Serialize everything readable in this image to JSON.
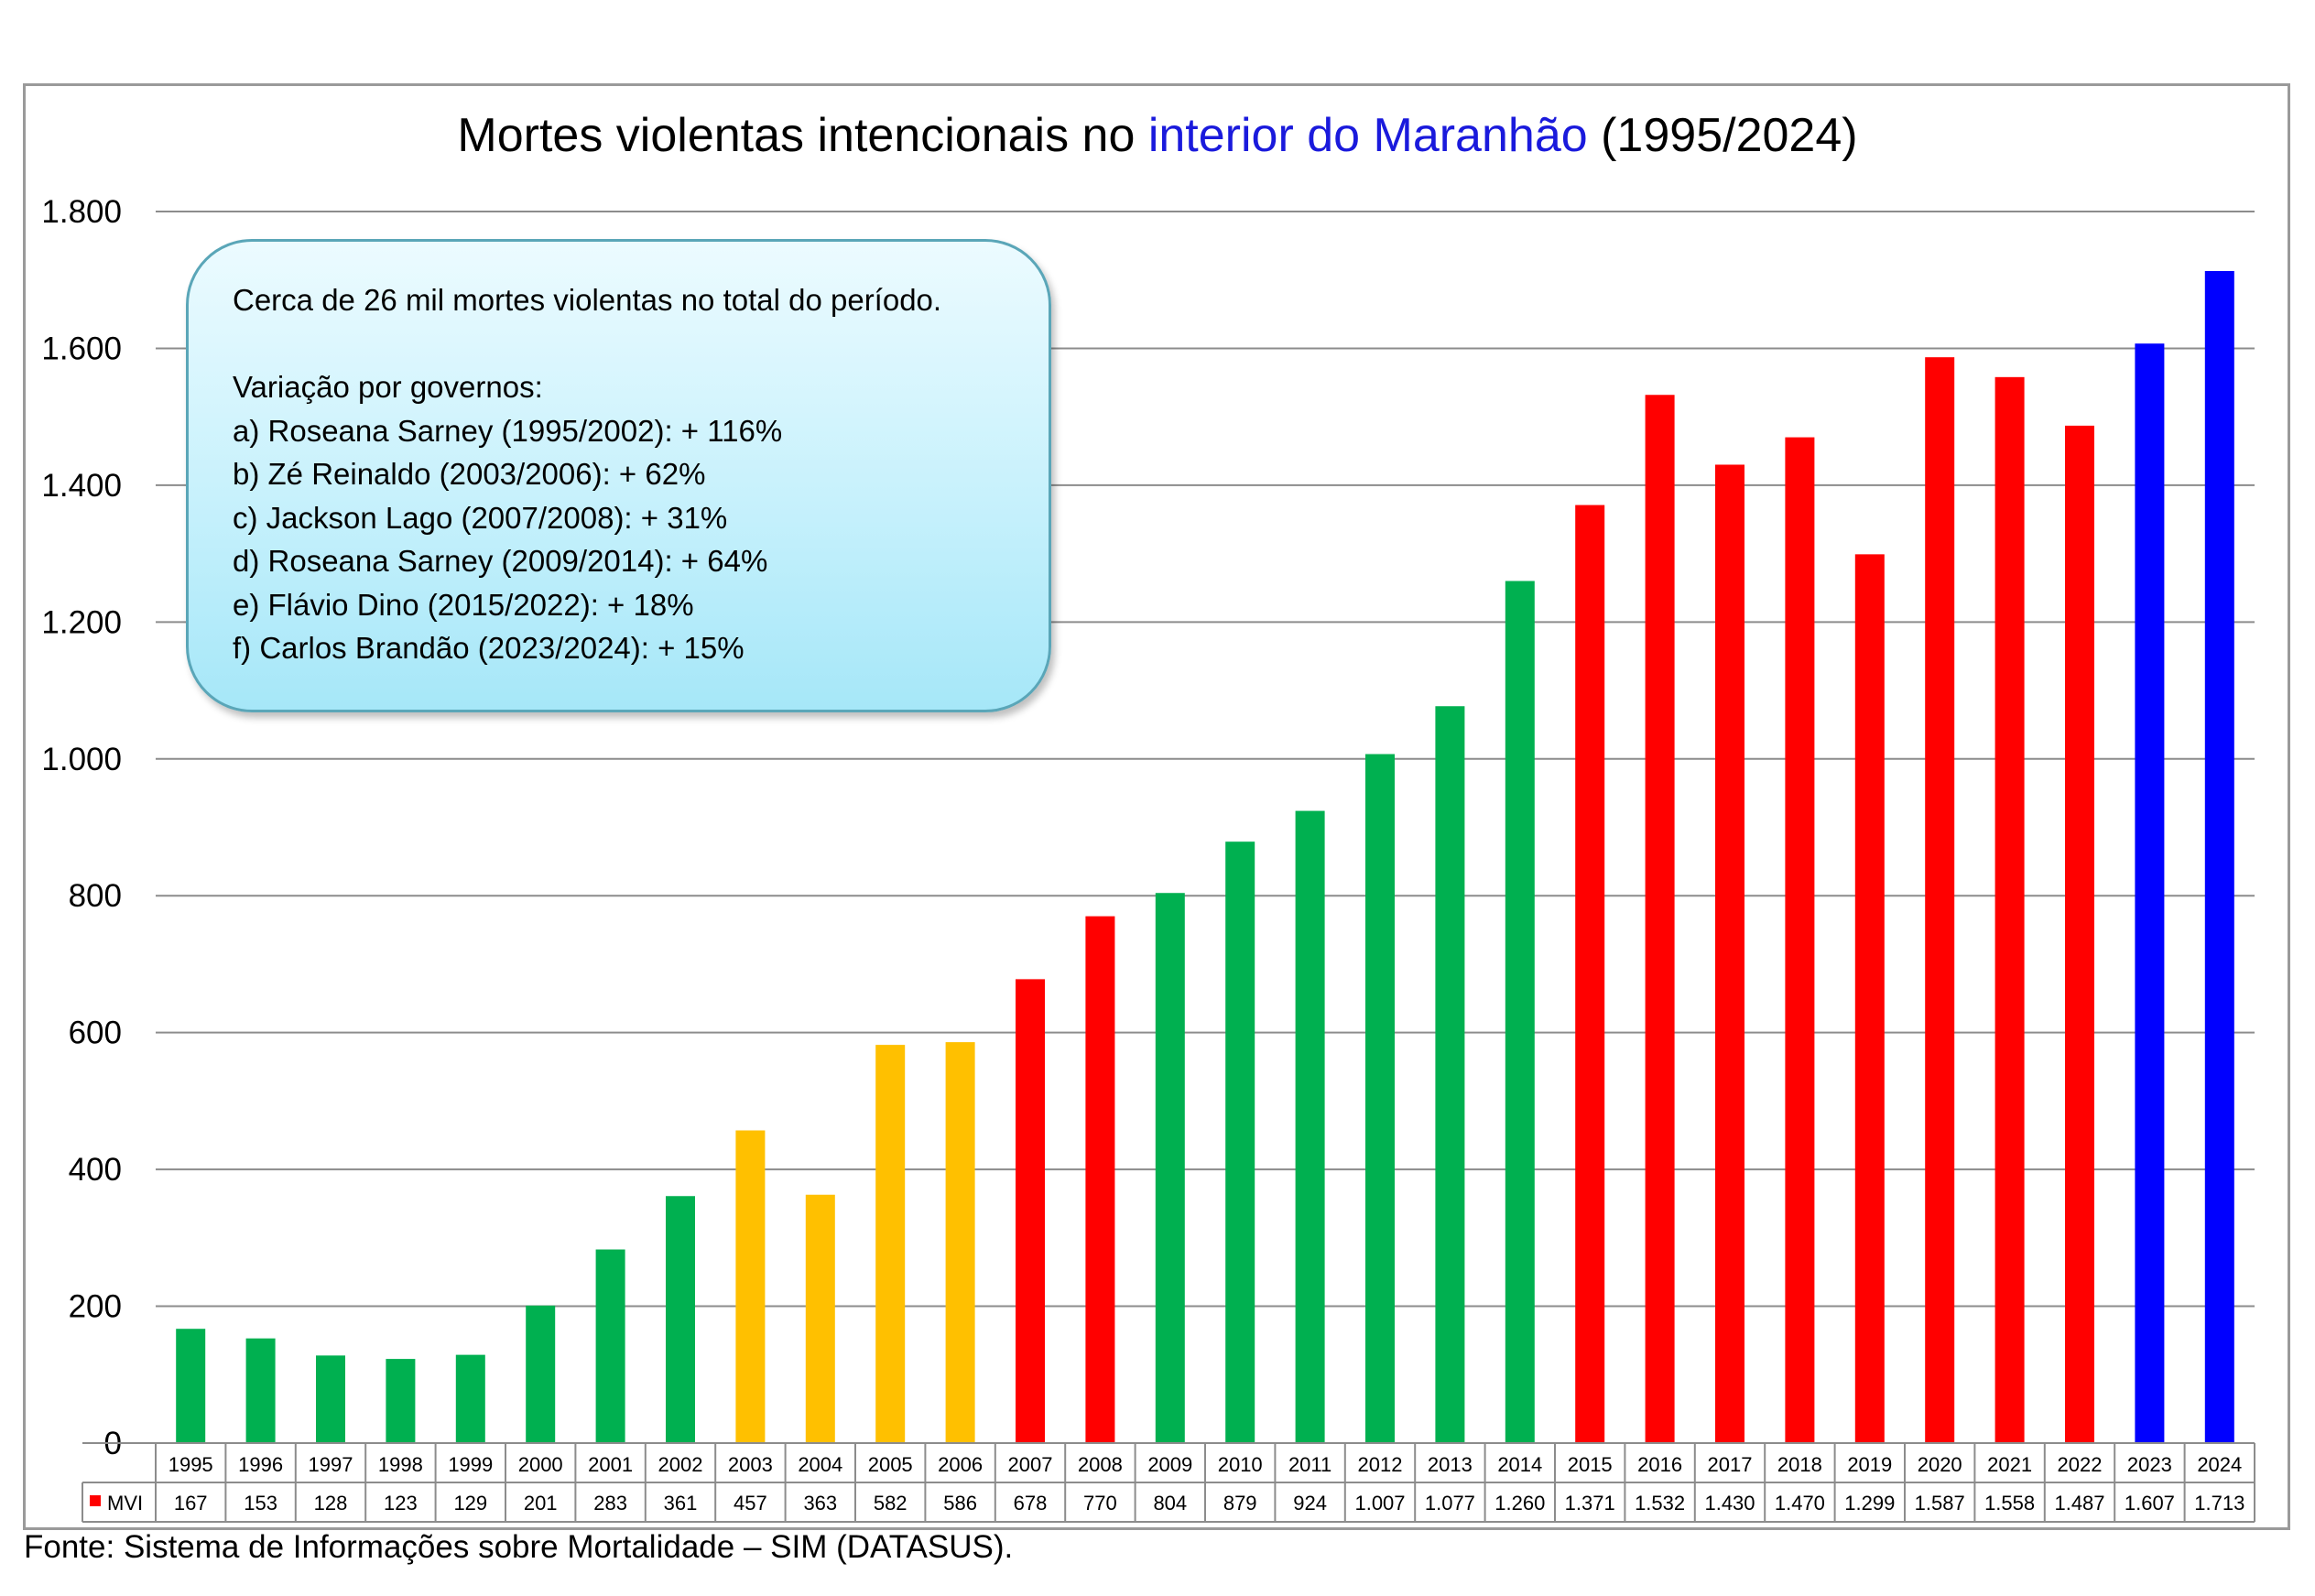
{
  "chart_data": {
    "type": "bar",
    "title_parts": [
      "Mortes violentas intencionais no ",
      "interior do Maranhão",
      " (1995/2024)"
    ],
    "categories": [
      "1995",
      "1996",
      "1997",
      "1998",
      "1999",
      "2000",
      "2001",
      "2002",
      "2003",
      "2004",
      "2005",
      "2006",
      "2007",
      "2008",
      "2009",
      "2010",
      "2011",
      "2012",
      "2013",
      "2014",
      "2015",
      "2016",
      "2017",
      "2018",
      "2019",
      "2020",
      "2021",
      "2022",
      "2023",
      "2024"
    ],
    "values": [
      167,
      153,
      128,
      123,
      129,
      201,
      283,
      361,
      457,
      363,
      582,
      586,
      678,
      770,
      804,
      879,
      924,
      1007,
      1077,
      1260,
      1371,
      1532,
      1430,
      1470,
      1299,
      1587,
      1558,
      1487,
      1607,
      1713
    ],
    "value_labels": [
      "167",
      "153",
      "128",
      "123",
      "129",
      "201",
      "283",
      "361",
      "457",
      "363",
      "582",
      "586",
      "678",
      "770",
      "804",
      "879",
      "924",
      "1.007",
      "1.077",
      "1.260",
      "1.371",
      "1.532",
      "1.430",
      "1.470",
      "1.299",
      "1.587",
      "1.558",
      "1.487",
      "1.607",
      "1.713"
    ],
    "bar_colors": [
      "#00b050",
      "#00b050",
      "#00b050",
      "#00b050",
      "#00b050",
      "#00b050",
      "#00b050",
      "#00b050",
      "#ffc000",
      "#ffc000",
      "#ffc000",
      "#ffc000",
      "#ff0000",
      "#ff0000",
      "#00b050",
      "#00b050",
      "#00b050",
      "#00b050",
      "#00b050",
      "#00b050",
      "#ff0000",
      "#ff0000",
      "#ff0000",
      "#ff0000",
      "#ff0000",
      "#ff0000",
      "#ff0000",
      "#ff0000",
      "#0000ff",
      "#0000ff"
    ],
    "series": [
      {
        "name": "MVI",
        "legend_color": "#ff0000"
      }
    ],
    "ylim": [
      0,
      1800
    ],
    "yticks": [
      0,
      200,
      400,
      600,
      800,
      1000,
      1200,
      1400,
      1600,
      1800
    ],
    "ytick_labels": [
      "0",
      "200",
      "400",
      "600",
      "800",
      "1.000",
      "1.200",
      "1.400",
      "1.600",
      "1.800"
    ],
    "grid": true,
    "data_table": true,
    "title_highlight_color": "#1a1adc"
  },
  "annotation": {
    "lines": [
      "Cerca de 26 mil mortes violentas no total do período.",
      "",
      "Variação por governos:",
      "a) Roseana Sarney (1995/2002): + 116%",
      "b) Zé Reinaldo (2003/2006): + 62%",
      "c) Jackson Lago (2007/2008): + 31%",
      "d) Roseana Sarney (2009/2014): + 64%",
      "e) Flávio Dino (2015/2022): + 18%",
      "f) Carlos Brandão (2023/2024): + 15%"
    ]
  },
  "source": "Fonte: Sistema de Informações sobre Mortalidade – SIM (DATASUS)."
}
